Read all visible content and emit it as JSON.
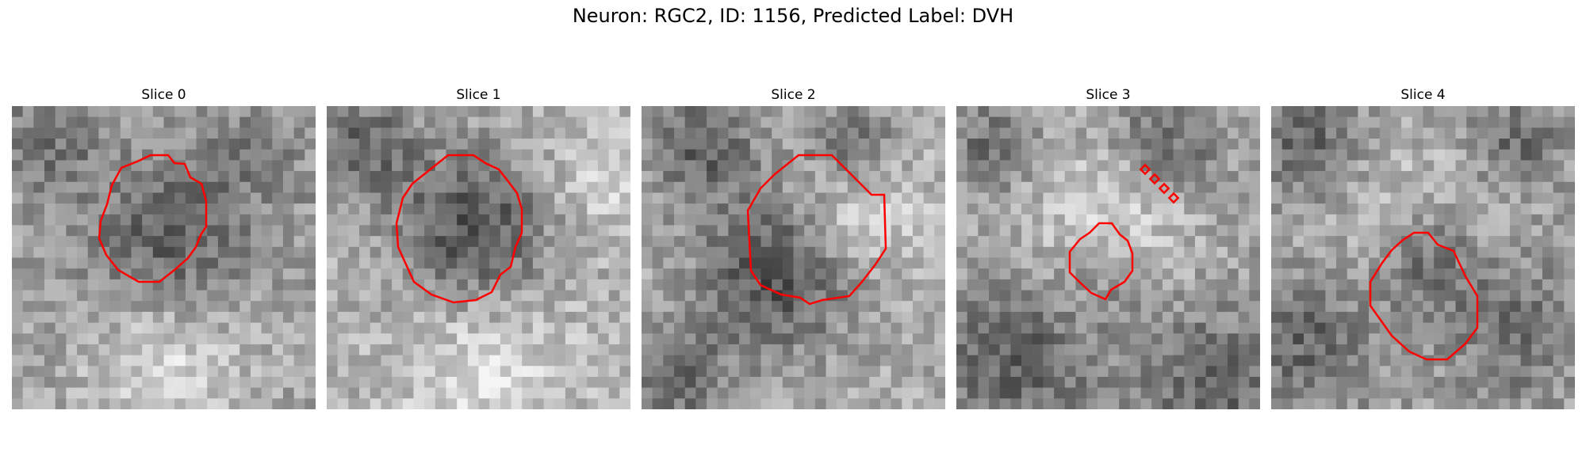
{
  "figure": {
    "title": "Neuron: RGC2, ID: 1156, Predicted Label: DVH"
  },
  "colors": {
    "outline": "#ff0000",
    "background": "#ffffff"
  },
  "slices": [
    {
      "title": "Slice 0"
    },
    {
      "title": "Slice 1"
    },
    {
      "title": "Slice 2"
    },
    {
      "title": "Slice 3"
    },
    {
      "title": "Slice 4"
    }
  ]
}
